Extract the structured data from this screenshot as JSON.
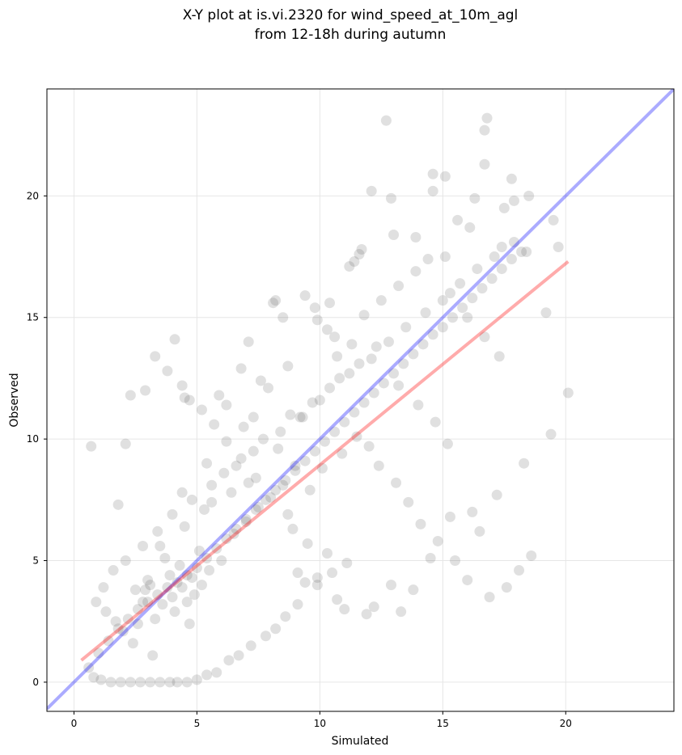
{
  "chart_data": {
    "type": "scatter",
    "title_lines": [
      "X-Y plot at is.vi.2320 for wind_speed_at_10m_agl",
      "from 12-18h during autumn"
    ],
    "xlabel": "Simulated",
    "ylabel": "Observed",
    "xlim": [
      -1.1,
      24.4
    ],
    "ylim": [
      -1.2,
      24.4
    ],
    "xticks": [
      0,
      5,
      10,
      15,
      20
    ],
    "yticks": [
      0,
      5,
      10,
      15,
      20
    ],
    "grid": true,
    "point_color": "#555555",
    "identity_line_color": "#0000ff",
    "fit_line_color": "#ff0000",
    "fit_line": {
      "x": [
        0.3,
        20.1
      ],
      "y": [
        0.9,
        17.3
      ]
    },
    "identity_line": {
      "x": [
        -1.1,
        24.4
      ],
      "y": [
        -1.1,
        24.4
      ]
    },
    "points": {
      "x": [
        12.7,
        16.8,
        16.7,
        16.7,
        14.6,
        15.1,
        14.6,
        16.3,
        12.1,
        12.9,
        18.5,
        17.5,
        17.8,
        17.9,
        15.6,
        16.1,
        13.9,
        13.0,
        17.4,
        18.4,
        15.1,
        11.7,
        11.6,
        11.4,
        11.2,
        9.4,
        8.2,
        7.1,
        4.1,
        4.5,
        2.9,
        2.3,
        0.7,
        2.1,
        1.8,
        8.1,
        8.5,
        9.8,
        10.4,
        9.9,
        10.3,
        10.6,
        11.3,
        10.7,
        8.7,
        7.6,
        6.8,
        5.9,
        6.2,
        7.3,
        5.4,
        4.4,
        3.1,
        2.8,
        19.5,
        19.7,
        19.2,
        19.4,
        20.1,
        18.3,
        17.2,
        16.2,
        16.5,
        15.3,
        14.5,
        13.8,
        12.9,
        13.3,
        12.2,
        11.9,
        11.0,
        10.5,
        9.9,
        9.4,
        9.1,
        8.6,
        8.2,
        7.8,
        7.2,
        6.7,
        6.3,
        5.8,
        5.4,
        5.0,
        4.6,
        4.2,
        3.9,
        3.5,
        3.1,
        2.7,
        2.3,
        1.9,
        1.5,
        1.1,
        0.8,
        0.6,
        1.0,
        1.4,
        1.8,
        2.2,
        2.6,
        3.0,
        3.4,
        3.8,
        4.2,
        4.6,
        5.0,
        5.4,
        5.8,
        6.2,
        6.6,
        7.0,
        7.4,
        7.8,
        8.2,
        8.6,
        9.0,
        9.4,
        9.8,
        10.2,
        10.6,
        11.0,
        11.4,
        11.8,
        12.2,
        12.6,
        13.0,
        13.4,
        13.8,
        14.2,
        14.6,
        15.0,
        15.4,
        15.8,
        16.2,
        16.6,
        17.0,
        17.4,
        17.8,
        18.2,
        3.6,
        4.0,
        4.4,
        4.8,
        5.2,
        4.3,
        3.7,
        4.9,
        5.5,
        4.1,
        3.3,
        2.9,
        4.6,
        5.1,
        3.9,
        4.7,
        6.0,
        6.5,
        7.0,
        7.5,
        8.0,
        8.5,
        9.0,
        8.3,
        7.7,
        6.9,
        6.1,
        5.6,
        9.6,
        10.1,
        10.9,
        11.5,
        12.0,
        12.4,
        13.1,
        13.6,
        14.1,
        14.8,
        15.5,
        16.0,
        16.9,
        17.6,
        18.1,
        18.6,
        7.9,
        8.8,
        9.3,
        10.0,
        10.8,
        11.6,
        12.3,
        13.2,
        14.0,
        14.7,
        15.2,
        2.0,
        2.4,
        2.6,
        3.2,
        1.3,
        1.7,
        2.5,
        3.0,
        3.5,
        4.5,
        5.3,
        6.4,
        7.1,
        0.9,
        1.2,
        1.6,
        2.1,
        2.8,
        3.4,
        4.0,
        4.8,
        5.6,
        6.6,
        7.3,
        8.4,
        9.2,
        9.7,
        10.4,
        11.2,
        12.1,
        12.8,
        13.5,
        14.3,
        15.0,
        15.7,
        16.4,
        17.1,
        17.9,
        11.8,
        12.5,
        13.2,
        13.9,
        14.4,
        15.3,
        16.0,
        16.7,
        17.3,
        8.9,
        9.5,
        10.3,
        11.1,
        9.1,
        9.9,
        10.7,
        8.7,
        7.4,
        6.8,
        6.2,
        5.7,
        5.2,
        4.7,
        4.4,
        3.8,
        3.3
      ],
      "y": [
        23.1,
        23.2,
        22.7,
        21.3,
        20.9,
        20.8,
        20.2,
        19.9,
        20.2,
        19.9,
        20.0,
        19.5,
        20.7,
        19.8,
        19.0,
        18.7,
        18.3,
        18.4,
        17.9,
        17.7,
        17.5,
        17.8,
        17.6,
        17.3,
        17.1,
        15.9,
        15.7,
        14.0,
        14.1,
        11.7,
        12.0,
        11.8,
        9.7,
        9.8,
        7.3,
        15.6,
        15.0,
        15.4,
        15.6,
        14.9,
        14.5,
        14.2,
        13.9,
        13.4,
        13.0,
        12.4,
        12.9,
        11.8,
        11.4,
        10.9,
        9.0,
        7.8,
        4.0,
        3.3,
        19.0,
        17.9,
        15.2,
        10.2,
        11.9,
        9.0,
        7.7,
        7.0,
        6.2,
        6.8,
        5.1,
        3.8,
        4.0,
        2.9,
        3.1,
        2.8,
        3.0,
        4.5,
        4.3,
        4.1,
        3.2,
        2.7,
        2.2,
        1.9,
        1.5,
        1.1,
        0.9,
        0.4,
        0.3,
        0.1,
        0.0,
        0.0,
        0.0,
        0.0,
        0.0,
        0.0,
        0.0,
        0.0,
        0.0,
        0.1,
        0.2,
        0.6,
        1.2,
        1.7,
        2.2,
        2.6,
        3.0,
        3.3,
        3.6,
        3.9,
        4.1,
        4.4,
        4.7,
        5.1,
        5.5,
        5.9,
        6.3,
        6.7,
        7.1,
        7.5,
        7.9,
        8.3,
        8.7,
        9.1,
        9.5,
        9.9,
        10.3,
        10.7,
        11.1,
        11.5,
        11.9,
        12.3,
        12.7,
        13.1,
        13.5,
        13.9,
        14.3,
        14.6,
        15.0,
        15.4,
        15.8,
        16.2,
        16.6,
        17.0,
        17.4,
        17.7,
        3.2,
        3.5,
        3.9,
        4.3,
        4.0,
        4.8,
        5.1,
        3.6,
        4.6,
        2.9,
        2.6,
        3.8,
        3.3,
        5.4,
        4.4,
        2.4,
        5.0,
        6.1,
        6.6,
        7.2,
        7.6,
        8.1,
        8.9,
        9.6,
        10.0,
        10.5,
        8.6,
        7.4,
        7.9,
        8.8,
        9.4,
        10.1,
        9.7,
        8.9,
        8.2,
        7.4,
        6.5,
        5.8,
        5.0,
        4.2,
        3.5,
        3.9,
        4.6,
        5.2,
        12.1,
        11.0,
        10.9,
        11.6,
        12.5,
        13.1,
        13.8,
        12.2,
        11.4,
        10.7,
        9.8,
        2.1,
        1.6,
        2.4,
        1.1,
        2.9,
        2.5,
        3.8,
        4.2,
        5.6,
        6.4,
        7.1,
        7.8,
        8.2,
        3.3,
        3.9,
        4.6,
        5.0,
        5.6,
        6.2,
        6.9,
        7.5,
        8.1,
        8.9,
        9.5,
        10.3,
        10.9,
        11.5,
        12.1,
        12.7,
        13.3,
        14.0,
        14.6,
        15.2,
        15.7,
        16.4,
        17.0,
        17.5,
        18.1,
        15.1,
        15.7,
        16.3,
        16.9,
        17.4,
        16.0,
        15.0,
        14.2,
        13.4,
        6.3,
        5.7,
        5.3,
        4.9,
        4.5,
        4.0,
        3.4,
        6.9,
        8.4,
        9.2,
        9.9,
        10.6,
        11.2,
        11.6,
        12.2,
        12.8,
        13.4
      ]
    }
  }
}
